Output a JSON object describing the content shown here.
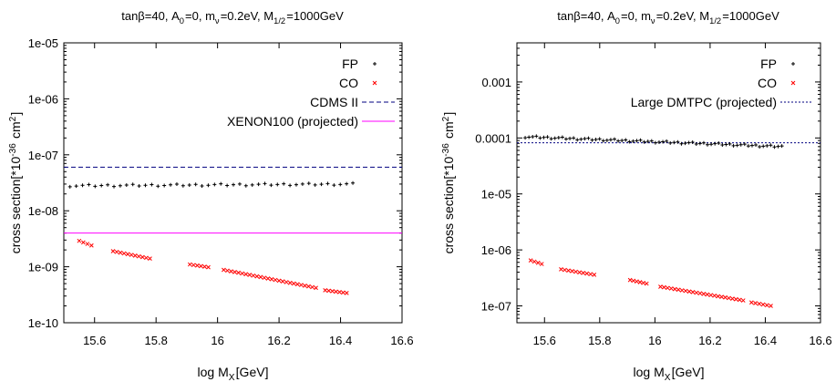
{
  "chart_data": [
    {
      "type": "scatter",
      "title": "tanβ=40, A0=0, mν=0.2eV, M1/2=1000GeV",
      "xlabel": "log MX[GeV]",
      "ylabel": "cross section[*10^-36 cm^2]",
      "x_scale": "linear",
      "y_scale": "log",
      "xlim": [
        15.5,
        16.6
      ],
      "ylim": [
        1e-10,
        1e-05
      ],
      "x_ticks": [
        "15.6",
        "15.8",
        "16",
        "16.2",
        "16.4",
        "16.6"
      ],
      "y_ticks": [
        "1e-10",
        "1e-09",
        "1e-08",
        "1e-07",
        "1e-06",
        "1e-05"
      ],
      "legend_position": "top-right",
      "series": [
        {
          "name": "FP",
          "marker": "plus",
          "color": "#000000",
          "x_range": [
            15.52,
            16.44
          ],
          "y_start": 2.8e-08,
          "y_end": 3e-08,
          "count": 46
        },
        {
          "name": "CO",
          "marker": "cross",
          "color": "#ff0000",
          "segments": [
            {
              "x": [
                15.55,
                15.59
              ],
              "y": [
                2.9e-09,
                2.4e-09
              ]
            },
            {
              "x": [
                15.66,
                15.78
              ],
              "y": [
                1.9e-09,
                1.4e-09
              ]
            },
            {
              "x": [
                15.91,
                15.97
              ],
              "y": [
                1.1e-09,
                9.8e-10
              ]
            },
            {
              "x": [
                16.02,
                16.32
              ],
              "y": [
                8.8e-10,
                4.2e-10
              ]
            },
            {
              "x": [
                16.35,
                16.42
              ],
              "y": [
                3.8e-10,
                3.4e-10
              ]
            }
          ]
        }
      ],
      "lines": [
        {
          "name": "CDMS II",
          "y": 6e-08,
          "color": "#000080",
          "style": "dashed"
        },
        {
          "name": "XENON100 (projected)",
          "y": 4e-09,
          "color": "#ff00ff",
          "style": "solid"
        }
      ]
    },
    {
      "type": "scatter",
      "title": "tanβ=40, A0=0, mν=0.2eV, M1/2=1000GeV",
      "xlabel": "log MX[GeV]",
      "ylabel": "cross section[*10^-36 cm^2]",
      "x_scale": "linear",
      "y_scale": "log",
      "xlim": [
        15.5,
        16.6
      ],
      "ylim": [
        5e-08,
        0.005
      ],
      "x_ticks": [
        "15.6",
        "15.8",
        "16",
        "16.2",
        "16.4",
        "16.6"
      ],
      "y_ticks": [
        "1e-07",
        "1e-06",
        "1e-05",
        "0.0001",
        "0.001"
      ],
      "legend_position": "top-right",
      "series": [
        {
          "name": "FP",
          "marker": "plus",
          "color": "#000000",
          "x_range": [
            15.53,
            16.46
          ],
          "y_start": 0.000105,
          "y_end": 7e-05,
          "count": 70
        },
        {
          "name": "CO",
          "marker": "cross",
          "color": "#ff0000",
          "segments": [
            {
              "x": [
                15.55,
                15.59
              ],
              "y": [
                6.5e-07,
                5.6e-07
              ]
            },
            {
              "x": [
                15.66,
                15.78
              ],
              "y": [
                4.5e-07,
                3.6e-07
              ]
            },
            {
              "x": [
                15.91,
                15.97
              ],
              "y": [
                2.9e-07,
                2.5e-07
              ]
            },
            {
              "x": [
                16.02,
                16.32
              ],
              "y": [
                2.2e-07,
                1.25e-07
              ]
            },
            {
              "x": [
                16.35,
                16.42
              ],
              "y": [
                1.15e-07,
                1e-07
              ]
            }
          ]
        }
      ],
      "lines": [
        {
          "name": "Large DMTPC (projected)",
          "y": 8.2e-05,
          "color": "#000080",
          "style": "dotted"
        }
      ]
    }
  ]
}
